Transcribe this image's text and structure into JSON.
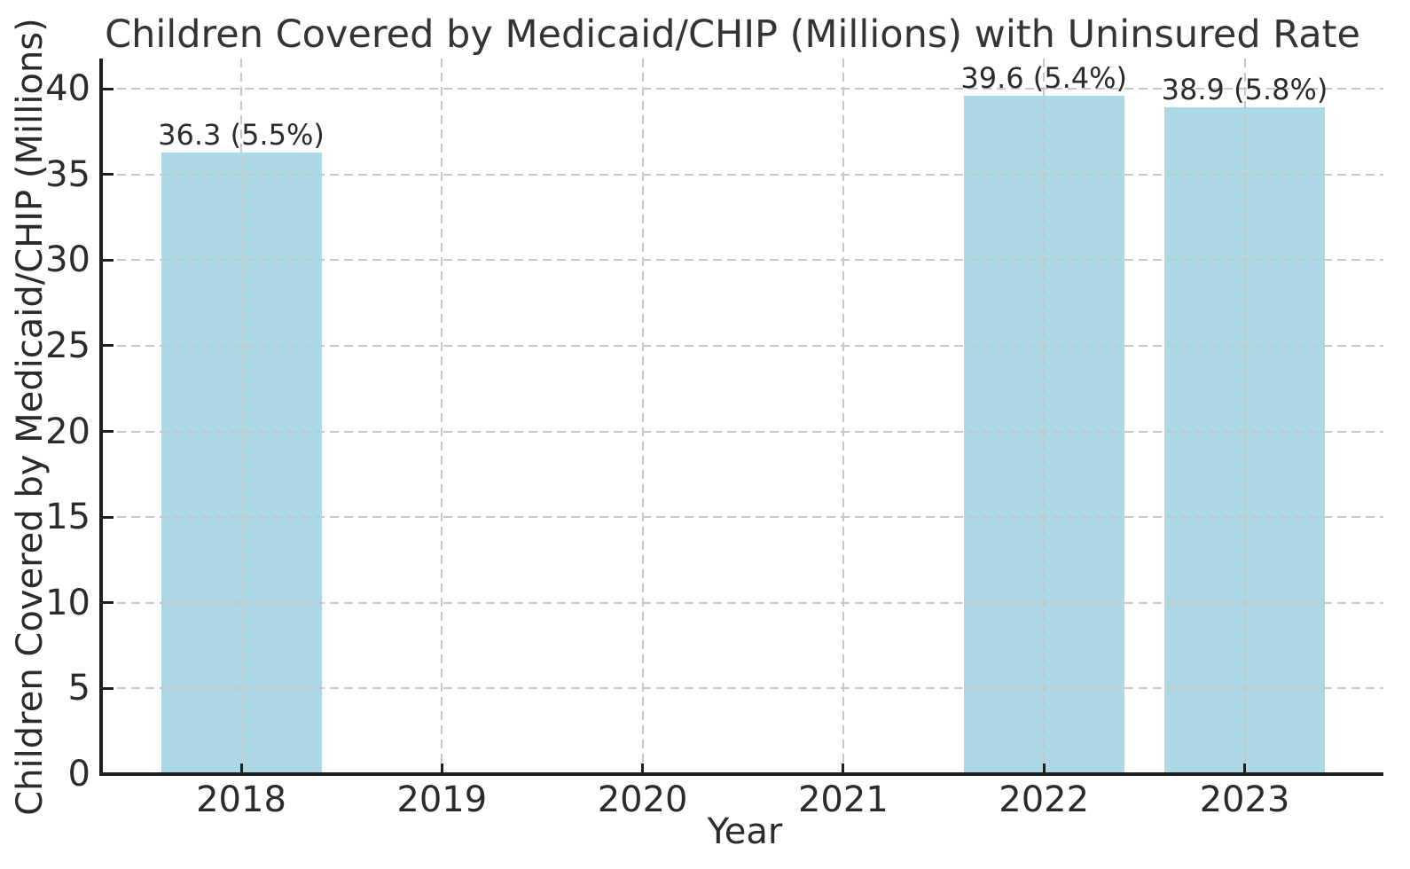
{
  "figure": {
    "background_color": "#ffffff",
    "text_color": "#2b2b2b",
    "spine_color": "#1f1f1f",
    "gridline_color": "#c7c7c7"
  },
  "chart_data": {
    "type": "bar",
    "title": "Children Covered by Medicaid/CHIP (Millions) with Uninsured Rate",
    "xlabel": "Year",
    "ylabel": "Children Covered by Medicaid/CHIP (Millions)",
    "categories": [
      "2018",
      "2019",
      "2020",
      "2021",
      "2022",
      "2023"
    ],
    "values": [
      36.3,
      null,
      null,
      null,
      39.6,
      38.9
    ],
    "uninsured_rate_percent": [
      5.5,
      null,
      null,
      null,
      5.4,
      5.8
    ],
    "bar_labels": [
      "36.3 (5.5%)",
      null,
      null,
      null,
      "39.6 (5.4%)",
      "38.9 (5.8%)"
    ],
    "yticks": [
      0,
      5,
      10,
      15,
      20,
      25,
      30,
      35,
      40
    ],
    "ylim": [
      0,
      41.6
    ],
    "bar_color": "#ADD8E6",
    "grid": {
      "horizontal": true,
      "vertical": true,
      "style": "dashed",
      "drawn_above_bars": true
    },
    "legend": null
  }
}
